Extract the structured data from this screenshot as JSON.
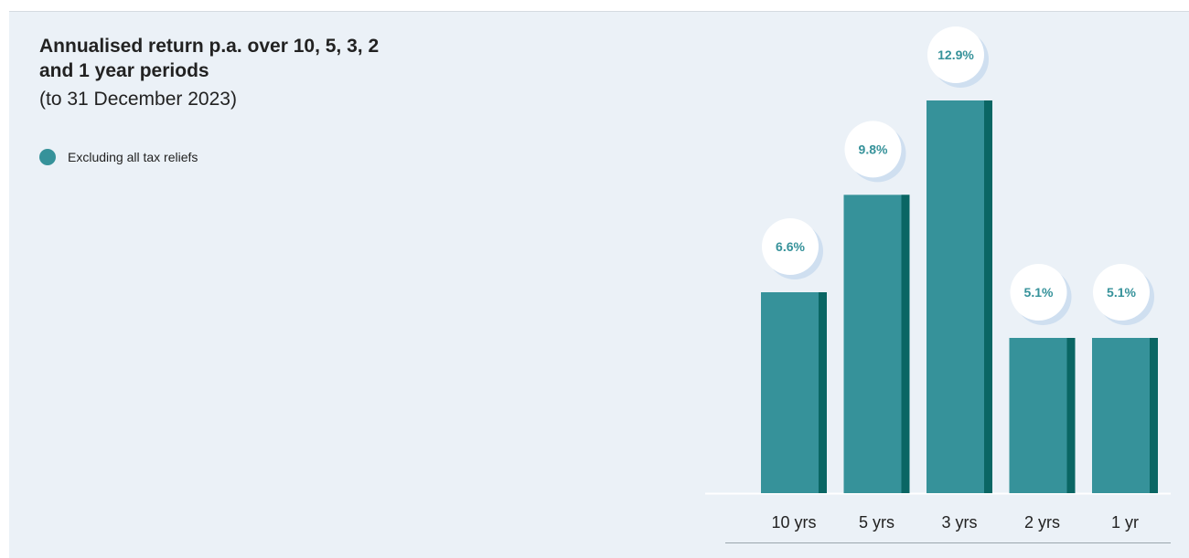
{
  "chart_data": {
    "type": "bar",
    "title": "Annualised return p.a. over 10, 5, 3, 2 and 1 year periods",
    "subtitle": "(to 31 December 2023)",
    "categories": [
      "10 yrs",
      "5 yrs",
      "3 yrs",
      "2 yrs",
      "1 yr"
    ],
    "series": [
      {
        "name": "Excluding all tax reliefs",
        "values": [
          6.6,
          9.8,
          12.9,
          5.1,
          5.1
        ]
      }
    ],
    "data_labels": [
      "6.6%",
      "9.8%",
      "12.9%",
      "5.1%",
      "5.1%"
    ],
    "ylim": [
      0,
      12.9
    ],
    "colors": {
      "bar": "#36929a",
      "bar_shade": "#0a6664",
      "label": "#36929a",
      "bubble_shadow": "#cfdff0"
    }
  }
}
